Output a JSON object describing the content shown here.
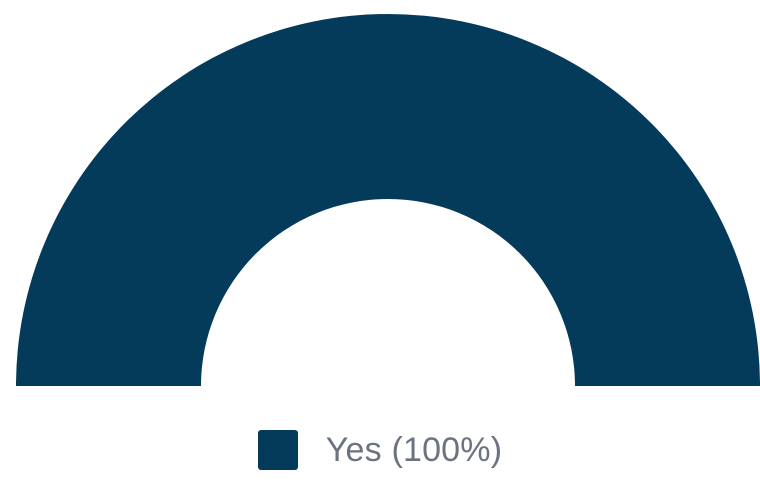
{
  "chart_data": {
    "type": "pie",
    "subtype": "semi-donut",
    "title": "",
    "slices": [
      {
        "label": "Yes",
        "value": 100,
        "percent_label": "Yes (100%)",
        "color": "#043a5a"
      }
    ],
    "legend": {
      "placement": "bottom"
    }
  },
  "colors": {
    "background": "#ffffff",
    "legend_text": "#6b7280"
  }
}
